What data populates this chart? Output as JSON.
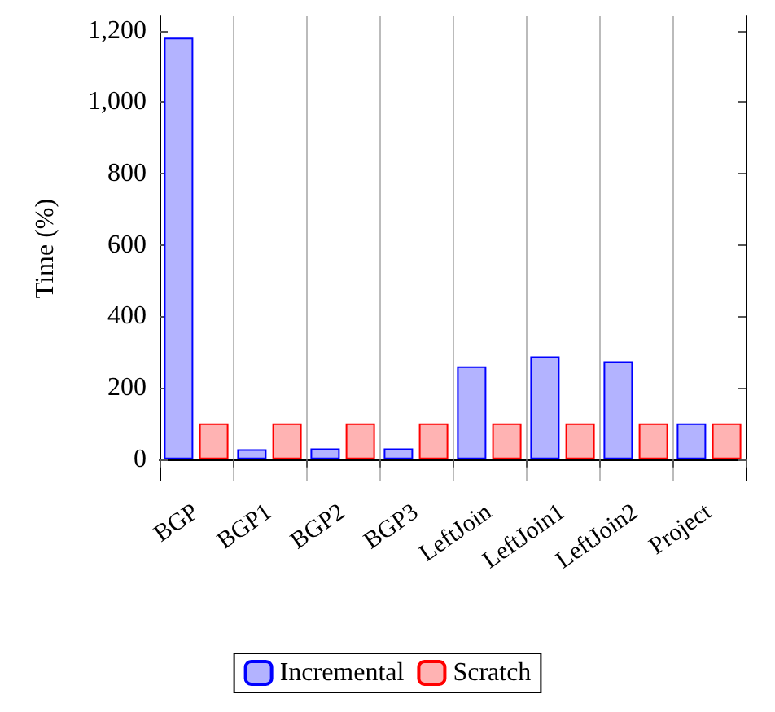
{
  "chart_data": {
    "type": "bar",
    "ylabel": "Time (%)",
    "categories": [
      "BGP",
      "BGP1",
      "BGP2",
      "BGP3",
      "LeftJoin",
      "LeftJoin1",
      "LeftJoin2",
      "Project"
    ],
    "series": [
      {
        "name": "Incremental",
        "color": "#b3b3ff",
        "values": [
          1180,
          28,
          30,
          30,
          260,
          288,
          274,
          100
        ]
      },
      {
        "name": "Scratch",
        "color": "#ffb3b3",
        "values": [
          100,
          100,
          100,
          100,
          100,
          100,
          100,
          100
        ]
      }
    ],
    "ylim": [
      -60,
      1240
    ],
    "yticks": [
      {
        "value": 0,
        "label": "0"
      },
      {
        "value": 200,
        "label": "200"
      },
      {
        "value": 400,
        "label": "400"
      },
      {
        "value": 600,
        "label": "600"
      },
      {
        "value": 800,
        "label": "800"
      },
      {
        "value": 1000,
        "label": "1,000"
      },
      {
        "value": 1200,
        "label": "1,200"
      }
    ],
    "grid": "x",
    "legend": "bottom"
  }
}
